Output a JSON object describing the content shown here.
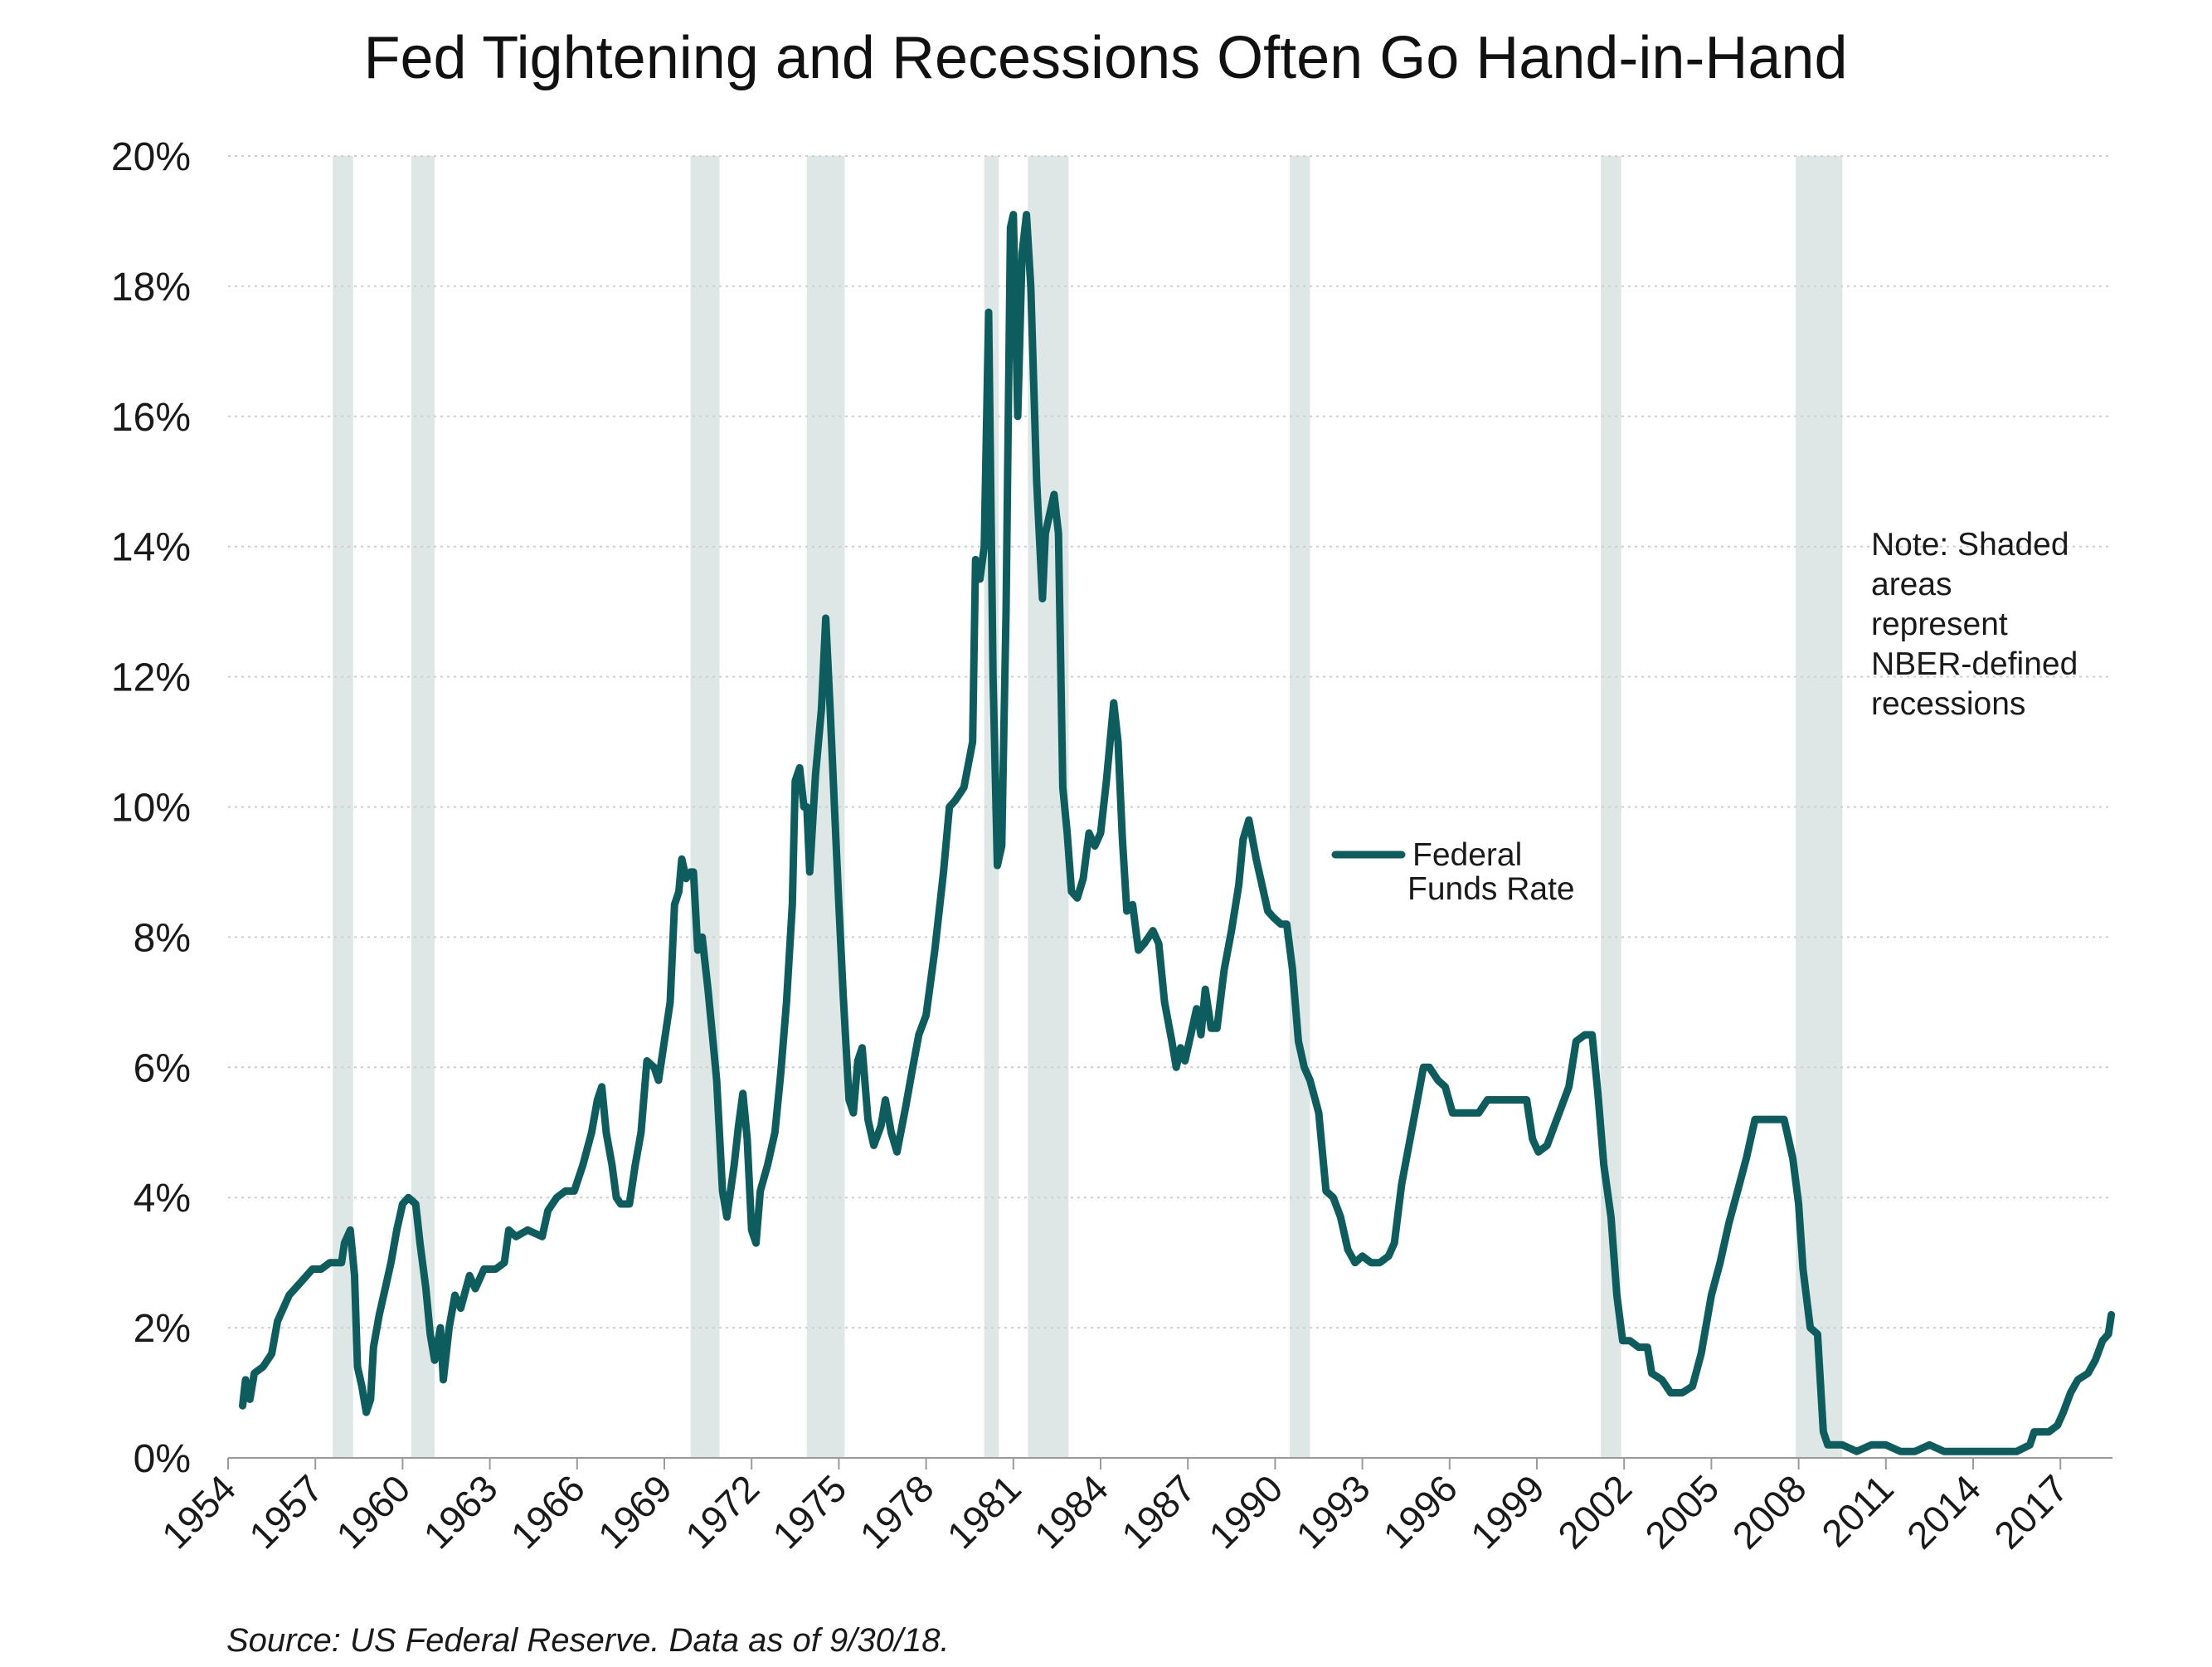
{
  "chart_data": {
    "type": "line",
    "title": "Fed Tightening and Recessions Often Go Hand-in-Hand",
    "xlabel": "",
    "ylabel": "",
    "xlim": [
      1954,
      2019.7
    ],
    "ylim": [
      0,
      20
    ],
    "x_tick_labels": [
      "1954",
      "1957",
      "1960",
      "1963",
      "1966",
      "1969",
      "1972",
      "1975",
      "1978",
      "1981",
      "1984",
      "1987",
      "1990",
      "1993",
      "1996",
      "1999",
      "2002",
      "2005",
      "2008",
      "2011",
      "2014",
      "2017"
    ],
    "y_tick_values": [
      0,
      2,
      4,
      6,
      8,
      10,
      12,
      14,
      16,
      18,
      20
    ],
    "y_tick_labels": [
      "0%",
      "2%",
      "4%",
      "6%",
      "8%",
      "10%",
      "12%",
      "14%",
      "16%",
      "18%",
      "20%"
    ],
    "grid": "horizontal dotted",
    "legend_position": "center-right",
    "series": [
      {
        "name": "Federal Funds Rate",
        "color": "#0d5c5e",
        "points": [
          [
            1954.5,
            0.8
          ],
          [
            1954.6,
            1.2
          ],
          [
            1954.75,
            0.9
          ],
          [
            1954.9,
            1.3
          ],
          [
            1955.2,
            1.4
          ],
          [
            1955.5,
            1.6
          ],
          [
            1955.7,
            2.1
          ],
          [
            1955.9,
            2.3
          ],
          [
            1956.1,
            2.5
          ],
          [
            1956.5,
            2.7
          ],
          [
            1956.9,
            2.9
          ],
          [
            1957.2,
            2.9
          ],
          [
            1957.5,
            3.0
          ],
          [
            1957.9,
            3.0
          ],
          [
            1958.0,
            3.3
          ],
          [
            1958.2,
            3.5
          ],
          [
            1958.35,
            2.8
          ],
          [
            1958.45,
            1.4
          ],
          [
            1958.6,
            1.1
          ],
          [
            1958.75,
            0.7
          ],
          [
            1958.9,
            0.9
          ],
          [
            1959.0,
            1.7
          ],
          [
            1959.2,
            2.2
          ],
          [
            1959.4,
            2.6
          ],
          [
            1959.6,
            3.0
          ],
          [
            1959.8,
            3.5
          ],
          [
            1960.0,
            3.9
          ],
          [
            1960.2,
            4.0
          ],
          [
            1960.45,
            3.9
          ],
          [
            1960.6,
            3.3
          ],
          [
            1960.8,
            2.6
          ],
          [
            1960.95,
            1.9
          ],
          [
            1961.1,
            1.5
          ],
          [
            1961.3,
            2.0
          ],
          [
            1961.4,
            1.2
          ],
          [
            1961.6,
            2.0
          ],
          [
            1961.8,
            2.5
          ],
          [
            1962.0,
            2.3
          ],
          [
            1962.3,
            2.8
          ],
          [
            1962.5,
            2.6
          ],
          [
            1962.8,
            2.9
          ],
          [
            1963.2,
            2.9
          ],
          [
            1963.5,
            3.0
          ],
          [
            1963.65,
            3.5
          ],
          [
            1963.9,
            3.4
          ],
          [
            1964.3,
            3.5
          ],
          [
            1964.8,
            3.4
          ],
          [
            1965.0,
            3.8
          ],
          [
            1965.3,
            4.0
          ],
          [
            1965.6,
            4.1
          ],
          [
            1965.9,
            4.1
          ],
          [
            1966.2,
            4.5
          ],
          [
            1966.5,
            5.0
          ],
          [
            1966.7,
            5.5
          ],
          [
            1966.85,
            5.7
          ],
          [
            1967.0,
            5.0
          ],
          [
            1967.2,
            4.5
          ],
          [
            1967.35,
            4.0
          ],
          [
            1967.5,
            3.9
          ],
          [
            1967.8,
            3.9
          ],
          [
            1968.0,
            4.5
          ],
          [
            1968.2,
            5.0
          ],
          [
            1968.4,
            6.1
          ],
          [
            1968.65,
            6.0
          ],
          [
            1968.8,
            5.8
          ],
          [
            1969.0,
            6.4
          ],
          [
            1969.2,
            7.0
          ],
          [
            1969.35,
            8.5
          ],
          [
            1969.5,
            8.7
          ],
          [
            1969.6,
            9.2
          ],
          [
            1969.75,
            8.9
          ],
          [
            1969.9,
            9.0
          ],
          [
            1970.0,
            9.0
          ],
          [
            1970.15,
            7.8
          ],
          [
            1970.3,
            8.0
          ],
          [
            1970.5,
            7.2
          ],
          [
            1970.65,
            6.5
          ],
          [
            1970.8,
            5.8
          ],
          [
            1971.0,
            4.1
          ],
          [
            1971.15,
            3.7
          ],
          [
            1971.4,
            4.5
          ],
          [
            1971.55,
            5.1
          ],
          [
            1971.7,
            5.6
          ],
          [
            1971.85,
            4.9
          ],
          [
            1972.0,
            3.5
          ],
          [
            1972.15,
            3.3
          ],
          [
            1972.3,
            4.1
          ],
          [
            1972.55,
            4.5
          ],
          [
            1972.8,
            5.0
          ],
          [
            1973.0,
            5.9
          ],
          [
            1973.2,
            7.0
          ],
          [
            1973.4,
            8.5
          ],
          [
            1973.5,
            10.4
          ],
          [
            1973.65,
            10.6
          ],
          [
            1973.8,
            10.0
          ],
          [
            1973.9,
            10.0
          ],
          [
            1974.0,
            9.0
          ],
          [
            1974.2,
            10.5
          ],
          [
            1974.4,
            11.5
          ],
          [
            1974.55,
            12.9
          ],
          [
            1974.7,
            11.5
          ],
          [
            1974.85,
            10.0
          ],
          [
            1975.0,
            8.5
          ],
          [
            1975.15,
            7.1
          ],
          [
            1975.35,
            5.5
          ],
          [
            1975.5,
            5.3
          ],
          [
            1975.65,
            6.1
          ],
          [
            1975.8,
            6.3
          ],
          [
            1976.0,
            5.2
          ],
          [
            1976.2,
            4.8
          ],
          [
            1976.45,
            5.1
          ],
          [
            1976.6,
            5.5
          ],
          [
            1976.8,
            5.0
          ],
          [
            1977.0,
            4.7
          ],
          [
            1977.3,
            5.4
          ],
          [
            1977.5,
            5.9
          ],
          [
            1977.75,
            6.5
          ],
          [
            1978.0,
            6.8
          ],
          [
            1978.3,
            7.8
          ],
          [
            1978.6,
            9.0
          ],
          [
            1978.8,
            10.0
          ],
          [
            1979.0,
            10.1
          ],
          [
            1979.3,
            10.3
          ],
          [
            1979.6,
            11.0
          ],
          [
            1979.7,
            13.8
          ],
          [
            1979.85,
            13.5
          ],
          [
            1980.0,
            14.0
          ],
          [
            1980.15,
            17.6
          ],
          [
            1980.3,
            12.0
          ],
          [
            1980.45,
            9.1
          ],
          [
            1980.6,
            9.4
          ],
          [
            1980.75,
            13.0
          ],
          [
            1980.9,
            18.9
          ],
          [
            1981.0,
            19.1
          ],
          [
            1981.15,
            16.0
          ],
          [
            1981.3,
            18.5
          ],
          [
            1981.45,
            19.1
          ],
          [
            1981.6,
            18.0
          ],
          [
            1981.8,
            15.0
          ],
          [
            1982.0,
            13.2
          ],
          [
            1982.1,
            14.2
          ],
          [
            1982.25,
            14.5
          ],
          [
            1982.4,
            14.8
          ],
          [
            1982.55,
            14.2
          ],
          [
            1982.7,
            10.3
          ],
          [
            1982.85,
            9.6
          ],
          [
            1983.0,
            8.7
          ],
          [
            1983.2,
            8.6
          ],
          [
            1983.4,
            8.9
          ],
          [
            1983.6,
            9.6
          ],
          [
            1983.8,
            9.4
          ],
          [
            1984.0,
            9.6
          ],
          [
            1984.2,
            10.4
          ],
          [
            1984.45,
            11.6
          ],
          [
            1984.6,
            11.0
          ],
          [
            1984.75,
            9.5
          ],
          [
            1984.9,
            8.4
          ],
          [
            1985.1,
            8.5
          ],
          [
            1985.3,
            7.8
          ],
          [
            1985.5,
            7.9
          ],
          [
            1985.8,
            8.1
          ],
          [
            1986.0,
            7.9
          ],
          [
            1986.2,
            7.0
          ],
          [
            1986.45,
            6.4
          ],
          [
            1986.6,
            6.0
          ],
          [
            1986.75,
            6.3
          ],
          [
            1986.9,
            6.1
          ],
          [
            1987.05,
            6.4
          ],
          [
            1987.3,
            6.9
          ],
          [
            1987.45,
            6.5
          ],
          [
            1987.6,
            7.2
          ],
          [
            1987.8,
            6.6
          ],
          [
            1988.0,
            6.6
          ],
          [
            1988.25,
            7.5
          ],
          [
            1988.5,
            8.1
          ],
          [
            1988.75,
            8.8
          ],
          [
            1988.9,
            9.5
          ],
          [
            1989.1,
            9.8
          ],
          [
            1989.35,
            9.2
          ],
          [
            1989.55,
            8.8
          ],
          [
            1989.75,
            8.4
          ],
          [
            1989.95,
            8.3
          ],
          [
            1990.2,
            8.2
          ],
          [
            1990.4,
            8.2
          ],
          [
            1990.6,
            7.5
          ],
          [
            1990.8,
            6.4
          ],
          [
            1991.0,
            6.0
          ],
          [
            1991.2,
            5.8
          ],
          [
            1991.5,
            5.3
          ],
          [
            1991.75,
            4.1
          ],
          [
            1992.0,
            4.0
          ],
          [
            1992.25,
            3.7
          ],
          [
            1992.5,
            3.2
          ],
          [
            1992.75,
            3.0
          ],
          [
            1993.0,
            3.1
          ],
          [
            1993.3,
            3.0
          ],
          [
            1993.6,
            3.0
          ],
          [
            1993.9,
            3.1
          ],
          [
            1994.1,
            3.3
          ],
          [
            1994.35,
            4.2
          ],
          [
            1994.6,
            4.8
          ],
          [
            1994.85,
            5.4
          ],
          [
            1995.1,
            6.0
          ],
          [
            1995.3,
            6.0
          ],
          [
            1995.6,
            5.8
          ],
          [
            1995.85,
            5.7
          ],
          [
            1996.1,
            5.3
          ],
          [
            1996.4,
            5.3
          ],
          [
            1996.7,
            5.3
          ],
          [
            1997.0,
            5.3
          ],
          [
            1997.3,
            5.5
          ],
          [
            1997.7,
            5.5
          ],
          [
            1998.0,
            5.5
          ],
          [
            1998.35,
            5.5
          ],
          [
            1998.65,
            5.5
          ],
          [
            1998.85,
            4.9
          ],
          [
            1999.05,
            4.7
          ],
          [
            1999.35,
            4.8
          ],
          [
            1999.6,
            5.1
          ],
          [
            1999.85,
            5.4
          ],
          [
            2000.1,
            5.7
          ],
          [
            2000.35,
            6.4
          ],
          [
            2000.65,
            6.5
          ],
          [
            2000.9,
            6.5
          ],
          [
            2001.1,
            5.6
          ],
          [
            2001.3,
            4.5
          ],
          [
            2001.55,
            3.7
          ],
          [
            2001.75,
            2.5
          ],
          [
            2001.95,
            1.8
          ],
          [
            2002.2,
            1.8
          ],
          [
            2002.5,
            1.7
          ],
          [
            2002.8,
            1.7
          ],
          [
            2002.95,
            1.3
          ],
          [
            2003.3,
            1.2
          ],
          [
            2003.6,
            1.0
          ],
          [
            2004.0,
            1.0
          ],
          [
            2004.35,
            1.1
          ],
          [
            2004.65,
            1.6
          ],
          [
            2005.0,
            2.5
          ],
          [
            2005.3,
            3.0
          ],
          [
            2005.6,
            3.6
          ],
          [
            2005.9,
            4.1
          ],
          [
            2006.2,
            4.6
          ],
          [
            2006.5,
            5.2
          ],
          [
            2006.9,
            5.2
          ],
          [
            2007.2,
            5.2
          ],
          [
            2007.5,
            5.2
          ],
          [
            2007.8,
            4.6
          ],
          [
            2008.0,
            3.9
          ],
          [
            2008.15,
            2.9
          ],
          [
            2008.4,
            2.0
          ],
          [
            2008.65,
            1.9
          ],
          [
            2008.85,
            0.4
          ],
          [
            2009.0,
            0.2
          ],
          [
            2009.5,
            0.2
          ],
          [
            2010.0,
            0.1
          ],
          [
            2010.5,
            0.2
          ],
          [
            2011.0,
            0.2
          ],
          [
            2011.5,
            0.1
          ],
          [
            2012.0,
            0.1
          ],
          [
            2012.5,
            0.2
          ],
          [
            2013.0,
            0.1
          ],
          [
            2013.5,
            0.1
          ],
          [
            2014.0,
            0.1
          ],
          [
            2014.5,
            0.1
          ],
          [
            2015.0,
            0.1
          ],
          [
            2015.5,
            0.1
          ],
          [
            2015.95,
            0.2
          ],
          [
            2016.1,
            0.4
          ],
          [
            2016.6,
            0.4
          ],
          [
            2016.9,
            0.5
          ],
          [
            2017.1,
            0.7
          ],
          [
            2017.35,
            1.0
          ],
          [
            2017.6,
            1.2
          ],
          [
            2017.95,
            1.3
          ],
          [
            2018.2,
            1.5
          ],
          [
            2018.45,
            1.8
          ],
          [
            2018.65,
            1.9
          ],
          [
            2018.75,
            2.2
          ]
        ]
      }
    ],
    "recessions": [
      [
        1957.6,
        1958.3
      ],
      [
        1960.3,
        1961.1
      ],
      [
        1969.9,
        1970.9
      ],
      [
        1973.9,
        1975.2
      ],
      [
        1980.0,
        1980.5
      ],
      [
        1981.5,
        1982.9
      ],
      [
        1990.5,
        1991.2
      ],
      [
        2001.2,
        2001.9
      ],
      [
        2007.9,
        2009.5
      ]
    ],
    "note": [
      "Note: Shaded",
      "areas",
      "represent",
      "NBER-defined",
      "recessions"
    ],
    "legend_label_lines": [
      "Federal",
      "Funds Rate"
    ],
    "source": "Source: US Federal Reserve. Data as of 9/30/18.",
    "colors": {
      "line": "#0d5c5e",
      "recession_shade": "#dfe6e6",
      "gridline": "#cfcfcf",
      "axis": "#9a9a9a",
      "text": "#1a1a1a"
    }
  }
}
